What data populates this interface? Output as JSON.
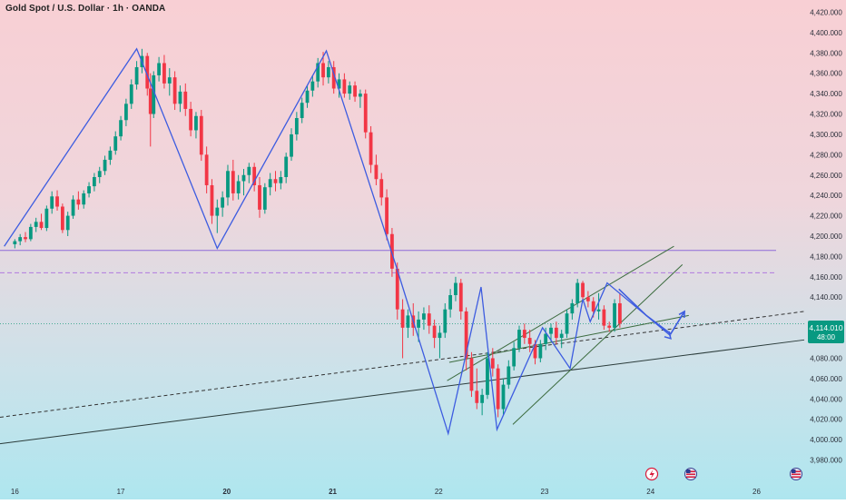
{
  "title": "Gold Spot / U.S. Dollar · 1h · OANDA",
  "price_badge": {
    "price": "4,114.010",
    "countdown": "48:00",
    "color": "#089981"
  },
  "chart_data": {
    "type": "candlestick",
    "symbol": "Gold Spot / U.S. Dollar",
    "interval": "1h",
    "source": "OANDA",
    "y_ticks": [
      "4,420.000",
      "4,400.000",
      "4,380.000",
      "4,360.000",
      "4,340.000",
      "4,320.000",
      "4,300.000",
      "4,280.000",
      "4,260.000",
      "4,240.000",
      "4,220.000",
      "4,200.000",
      "4,180.000",
      "4,160.000",
      "4,140.000",
      "4,120.000",
      "4,100.000",
      "4,080.000",
      "4,060.000",
      "4,040.000",
      "4,020.000",
      "4,000.000",
      "3,980.000"
    ],
    "y_tick_values": [
      4420,
      4400,
      4380,
      4360,
      4340,
      4320,
      4300,
      4280,
      4260,
      4240,
      4220,
      4200,
      4180,
      4160,
      4140,
      4120,
      4100,
      4080,
      4060,
      4040,
      4020,
      4000,
      3980
    ],
    "ylim": [
      3968,
      4432
    ],
    "x_ticks": [
      "16",
      "17",
      "20",
      "21",
      "22",
      "23",
      "24",
      "26"
    ],
    "x_tick_values": [
      0,
      1,
      2,
      3,
      4,
      5,
      6,
      7
    ],
    "xlim": [
      -0.14,
      7.45
    ],
    "current_price": 4114.01,
    "up_color": "#089981",
    "down_color": "#f23645",
    "candles": [
      [
        0.0,
        4192,
        4197,
        4188,
        4195
      ],
      [
        0.05,
        4195,
        4202,
        4191,
        4199
      ],
      [
        0.1,
        4199,
        4204,
        4194,
        4197
      ],
      [
        0.15,
        4197,
        4212,
        4195,
        4209
      ],
      [
        0.2,
        4209,
        4218,
        4204,
        4214
      ],
      [
        0.25,
        4214,
        4222,
        4206,
        4208
      ],
      [
        0.3,
        4208,
        4230,
        4205,
        4227
      ],
      [
        0.35,
        4227,
        4244,
        4222,
        4239
      ],
      [
        0.4,
        4239,
        4245,
        4225,
        4229
      ],
      [
        0.45,
        4229,
        4232,
        4203,
        4206
      ],
      [
        0.5,
        4206,
        4224,
        4200,
        4220
      ],
      [
        0.55,
        4220,
        4240,
        4217,
        4236
      ],
      [
        0.6,
        4236,
        4244,
        4226,
        4231
      ],
      [
        0.65,
        4231,
        4245,
        4227,
        4242
      ],
      [
        0.7,
        4242,
        4253,
        4238,
        4249
      ],
      [
        0.75,
        4249,
        4262,
        4244,
        4258
      ],
      [
        0.8,
        4258,
        4268,
        4252,
        4264
      ],
      [
        0.85,
        4264,
        4279,
        4260,
        4275
      ],
      [
        0.9,
        4275,
        4288,
        4270,
        4284
      ],
      [
        0.95,
        4284,
        4303,
        4280,
        4298
      ],
      [
        1.0,
        4298,
        4318,
        4294,
        4314
      ],
      [
        1.05,
        4314,
        4335,
        4308,
        4330
      ],
      [
        1.1,
        4330,
        4354,
        4325,
        4349
      ],
      [
        1.15,
        4349,
        4372,
        4344,
        4366
      ],
      [
        1.2,
        4366,
        4384,
        4360,
        4377
      ],
      [
        1.25,
        4377,
        4380,
        4338,
        4345
      ],
      [
        1.28,
        4345,
        4360,
        4288,
        4320
      ],
      [
        1.31,
        4320,
        4362,
        4316,
        4358
      ],
      [
        1.36,
        4358,
        4376,
        4352,
        4370
      ],
      [
        1.41,
        4370,
        4378,
        4345,
        4350
      ],
      [
        1.46,
        4350,
        4365,
        4338,
        4356
      ],
      [
        1.51,
        4356,
        4362,
        4324,
        4330
      ],
      [
        1.56,
        4330,
        4348,
        4322,
        4342
      ],
      [
        1.61,
        4342,
        4350,
        4318,
        4325
      ],
      [
        1.66,
        4325,
        4332,
        4298,
        4304
      ],
      [
        1.71,
        4304,
        4322,
        4296,
        4318
      ],
      [
        1.76,
        4318,
        4324,
        4274,
        4280
      ],
      [
        1.81,
        4280,
        4288,
        4242,
        4250
      ],
      [
        1.86,
        4250,
        4256,
        4212,
        4220
      ],
      [
        1.91,
        4220,
        4236,
        4203,
        4228
      ],
      [
        1.96,
        4228,
        4244,
        4219,
        4238
      ],
      [
        2.01,
        4238,
        4270,
        4230,
        4264
      ],
      [
        2.06,
        4264,
        4275,
        4235,
        4242
      ],
      [
        2.11,
        4242,
        4260,
        4236,
        4254
      ],
      [
        2.16,
        4254,
        4266,
        4240,
        4260
      ],
      [
        2.21,
        4260,
        4272,
        4252,
        4268
      ],
      [
        2.26,
        4268,
        4272,
        4244,
        4250
      ],
      [
        2.31,
        4250,
        4258,
        4218,
        4226
      ],
      [
        2.36,
        4226,
        4252,
        4222,
        4248
      ],
      [
        2.41,
        4248,
        4262,
        4240,
        4256
      ],
      [
        2.46,
        4256,
        4264,
        4244,
        4252
      ],
      [
        2.51,
        4252,
        4264,
        4246,
        4258
      ],
      [
        2.56,
        4258,
        4282,
        4252,
        4278
      ],
      [
        2.61,
        4278,
        4306,
        4274,
        4300
      ],
      [
        2.66,
        4300,
        4322,
        4294,
        4316
      ],
      [
        2.71,
        4316,
        4336,
        4311,
        4331
      ],
      [
        2.76,
        4331,
        4348,
        4326,
        4343
      ],
      [
        2.81,
        4343,
        4358,
        4337,
        4352
      ],
      [
        2.86,
        4352,
        4375,
        4346,
        4370
      ],
      [
        2.91,
        4370,
        4381,
        4348,
        4356
      ],
      [
        2.96,
        4356,
        4372,
        4350,
        4366
      ],
      [
        3.01,
        4366,
        4372,
        4340,
        4345
      ],
      [
        3.06,
        4345,
        4360,
        4336,
        4354
      ],
      [
        3.11,
        4354,
        4360,
        4336,
        4340
      ],
      [
        3.16,
        4340,
        4352,
        4334,
        4348
      ],
      [
        3.21,
        4348,
        4352,
        4332,
        4337
      ],
      [
        3.26,
        4337,
        4344,
        4326,
        4340
      ],
      [
        3.31,
        4340,
        4344,
        4296,
        4302
      ],
      [
        3.36,
        4302,
        4308,
        4262,
        4270
      ],
      [
        3.41,
        4270,
        4280,
        4250,
        4256
      ],
      [
        3.46,
        4256,
        4262,
        4230,
        4238
      ],
      [
        3.51,
        4238,
        4246,
        4196,
        4202
      ],
      [
        3.56,
        4202,
        4208,
        4160,
        4168
      ],
      [
        3.61,
        4168,
        4174,
        4118,
        4128
      ],
      [
        3.66,
        4128,
        4138,
        4080,
        4110
      ],
      [
        3.71,
        4110,
        4128,
        4100,
        4122
      ],
      [
        3.76,
        4122,
        4134,
        4102,
        4110
      ],
      [
        3.81,
        4110,
        4126,
        4096,
        4118
      ],
      [
        3.86,
        4118,
        4130,
        4108,
        4124
      ],
      [
        3.91,
        4124,
        4132,
        4104,
        4112
      ],
      [
        3.96,
        4112,
        4118,
        4090,
        4100
      ],
      [
        4.01,
        4100,
        4112,
        4080,
        4105
      ],
      [
        4.06,
        4105,
        4134,
        4100,
        4128
      ],
      [
        4.11,
        4128,
        4148,
        4120,
        4142
      ],
      [
        4.16,
        4142,
        4160,
        4136,
        4154
      ],
      [
        4.21,
        4154,
        4158,
        4118,
        4126
      ],
      [
        4.26,
        4126,
        4130,
        4068,
        4080
      ],
      [
        4.31,
        4080,
        4086,
        4042,
        4048
      ],
      [
        4.36,
        4048,
        4070,
        4030,
        4036
      ],
      [
        4.41,
        4036,
        4050,
        4024,
        4044
      ],
      [
        4.46,
        4044,
        4086,
        4040,
        4080
      ],
      [
        4.51,
        4080,
        4090,
        4062,
        4070
      ],
      [
        4.56,
        4070,
        4074,
        4022,
        4030
      ],
      [
        4.61,
        4030,
        4060,
        4024,
        4054
      ],
      [
        4.66,
        4054,
        4078,
        4050,
        4072
      ],
      [
        4.71,
        4072,
        4096,
        4068,
        4090
      ],
      [
        4.76,
        4090,
        4112,
        4086,
        4108
      ],
      [
        4.81,
        4108,
        4114,
        4094,
        4100
      ],
      [
        4.86,
        4100,
        4108,
        4086,
        4094
      ],
      [
        4.91,
        4094,
        4098,
        4074,
        4080
      ],
      [
        4.96,
        4080,
        4098,
        4076,
        4094
      ],
      [
        5.01,
        4094,
        4110,
        4088,
        4104
      ],
      [
        5.06,
        4104,
        4114,
        4096,
        4110
      ],
      [
        5.11,
        4110,
        4116,
        4094,
        4100
      ],
      [
        5.16,
        4100,
        4108,
        4090,
        4104
      ],
      [
        5.21,
        4104,
        4128,
        4100,
        4124
      ],
      [
        5.26,
        4124,
        4138,
        4118,
        4134
      ],
      [
        5.31,
        4134,
        4158,
        4130,
        4154
      ],
      [
        5.36,
        4154,
        4156,
        4136,
        4140
      ],
      [
        5.41,
        4140,
        4146,
        4130,
        4136
      ],
      [
        5.46,
        4136,
        4140,
        4120,
        4126
      ],
      [
        5.51,
        4126,
        4144,
        4118,
        4128
      ],
      [
        5.56,
        4128,
        4132,
        4108,
        4112
      ],
      [
        5.61,
        4112,
        4116,
        4106,
        4110
      ],
      [
        5.66,
        4110,
        4138,
        4106,
        4134
      ],
      [
        5.71,
        4134,
        4144,
        4110,
        4114
      ]
    ],
    "horizontal_lines": [
      {
        "price": 4186,
        "style": "solid",
        "color": "#8e6ad8"
      },
      {
        "price": 4164,
        "style": "dashed",
        "color": "#b07ae0"
      }
    ],
    "current_price_line": {
      "price": 4114.01,
      "color": "#1a9c7a"
    },
    "trend_lines": [
      {
        "name": "rising-support",
        "points": [
          [
            -0.14,
            3996
          ],
          [
            7.45,
            4098
          ]
        ],
        "style": "solid",
        "color": "#2a3b3a"
      },
      {
        "name": "rising-dashed",
        "points": [
          [
            -0.14,
            4022
          ],
          [
            7.45,
            4126
          ]
        ],
        "style": "dashed",
        "color": "#333"
      },
      {
        "name": "channel-upper",
        "points": [
          [
            4.08,
            4058
          ],
          [
            6.22,
            4190
          ]
        ],
        "style": "solid",
        "color": "#3b6b3e"
      },
      {
        "name": "channel-lower",
        "points": [
          [
            4.7,
            4015
          ],
          [
            6.3,
            4172
          ]
        ],
        "style": "solid",
        "color": "#3b6b3e"
      },
      {
        "name": "channel-base",
        "points": [
          [
            4.1,
            4076
          ],
          [
            6.36,
            4122
          ]
        ],
        "style": "solid",
        "color": "#3b6b3e"
      }
    ],
    "zigzag": {
      "color": "#3d5ce0",
      "points": [
        [
          -0.1,
          4190
        ],
        [
          1.15,
          4384
        ],
        [
          1.91,
          4188
        ],
        [
          2.94,
          4382
        ],
        [
          3.6,
          4170
        ],
        [
          4.09,
          4006
        ],
        [
          4.4,
          4150
        ],
        [
          4.55,
          4010
        ],
        [
          4.98,
          4110
        ],
        [
          5.24,
          4070
        ],
        [
          5.36,
          4138
        ],
        [
          5.43,
          4116
        ],
        [
          5.59,
          4154
        ],
        [
          6.19,
          4102
        ]
      ]
    },
    "forecast": {
      "color": "#3d5ce0",
      "points": [
        [
          5.7,
          4148
        ],
        [
          5.96,
          4122
        ],
        [
          6.19,
          4104
        ],
        [
          6.32,
          4126
        ]
      ]
    }
  }
}
